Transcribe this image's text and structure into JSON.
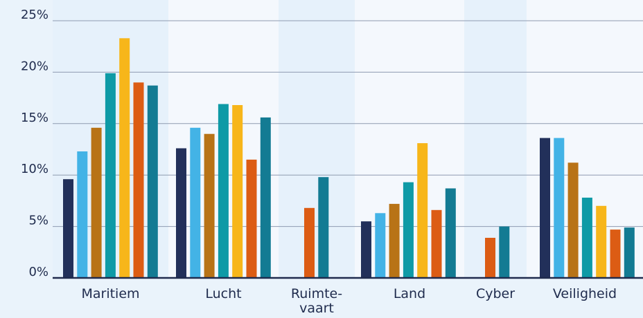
{
  "chart_data": {
    "type": "bar",
    "title": "",
    "xlabel": "",
    "ylabel": "",
    "ylim": [
      0,
      25
    ],
    "yticks": [
      "0%",
      "5%",
      "10%",
      "15%",
      "20%",
      "25%"
    ],
    "grid": true,
    "legend": "none",
    "categories": [
      "Maritiem",
      "Lucht",
      "Ruimte-\nvaart",
      "Land",
      "Cyber",
      "Veiligheid"
    ],
    "series": [
      {
        "color": "#22305a",
        "values": [
          9.6,
          12.6,
          null,
          5.5,
          null,
          13.6
        ]
      },
      {
        "color": "#43b3e6",
        "values": [
          12.3,
          14.6,
          null,
          6.3,
          null,
          13.6
        ]
      },
      {
        "color": "#b87316",
        "values": [
          14.6,
          14.0,
          null,
          7.2,
          null,
          11.2
        ]
      },
      {
        "color": "#0e9aa6",
        "values": [
          19.9,
          16.9,
          null,
          9.3,
          null,
          7.8
        ]
      },
      {
        "color": "#f7b61a",
        "values": [
          23.3,
          16.8,
          null,
          13.1,
          null,
          7.0
        ]
      },
      {
        "color": "#dc5c14",
        "values": [
          19.0,
          11.5,
          6.8,
          6.6,
          3.9,
          4.7
        ]
      },
      {
        "color": "#137b93",
        "values": [
          18.7,
          15.6,
          9.8,
          8.7,
          5.0,
          4.9
        ]
      }
    ]
  }
}
